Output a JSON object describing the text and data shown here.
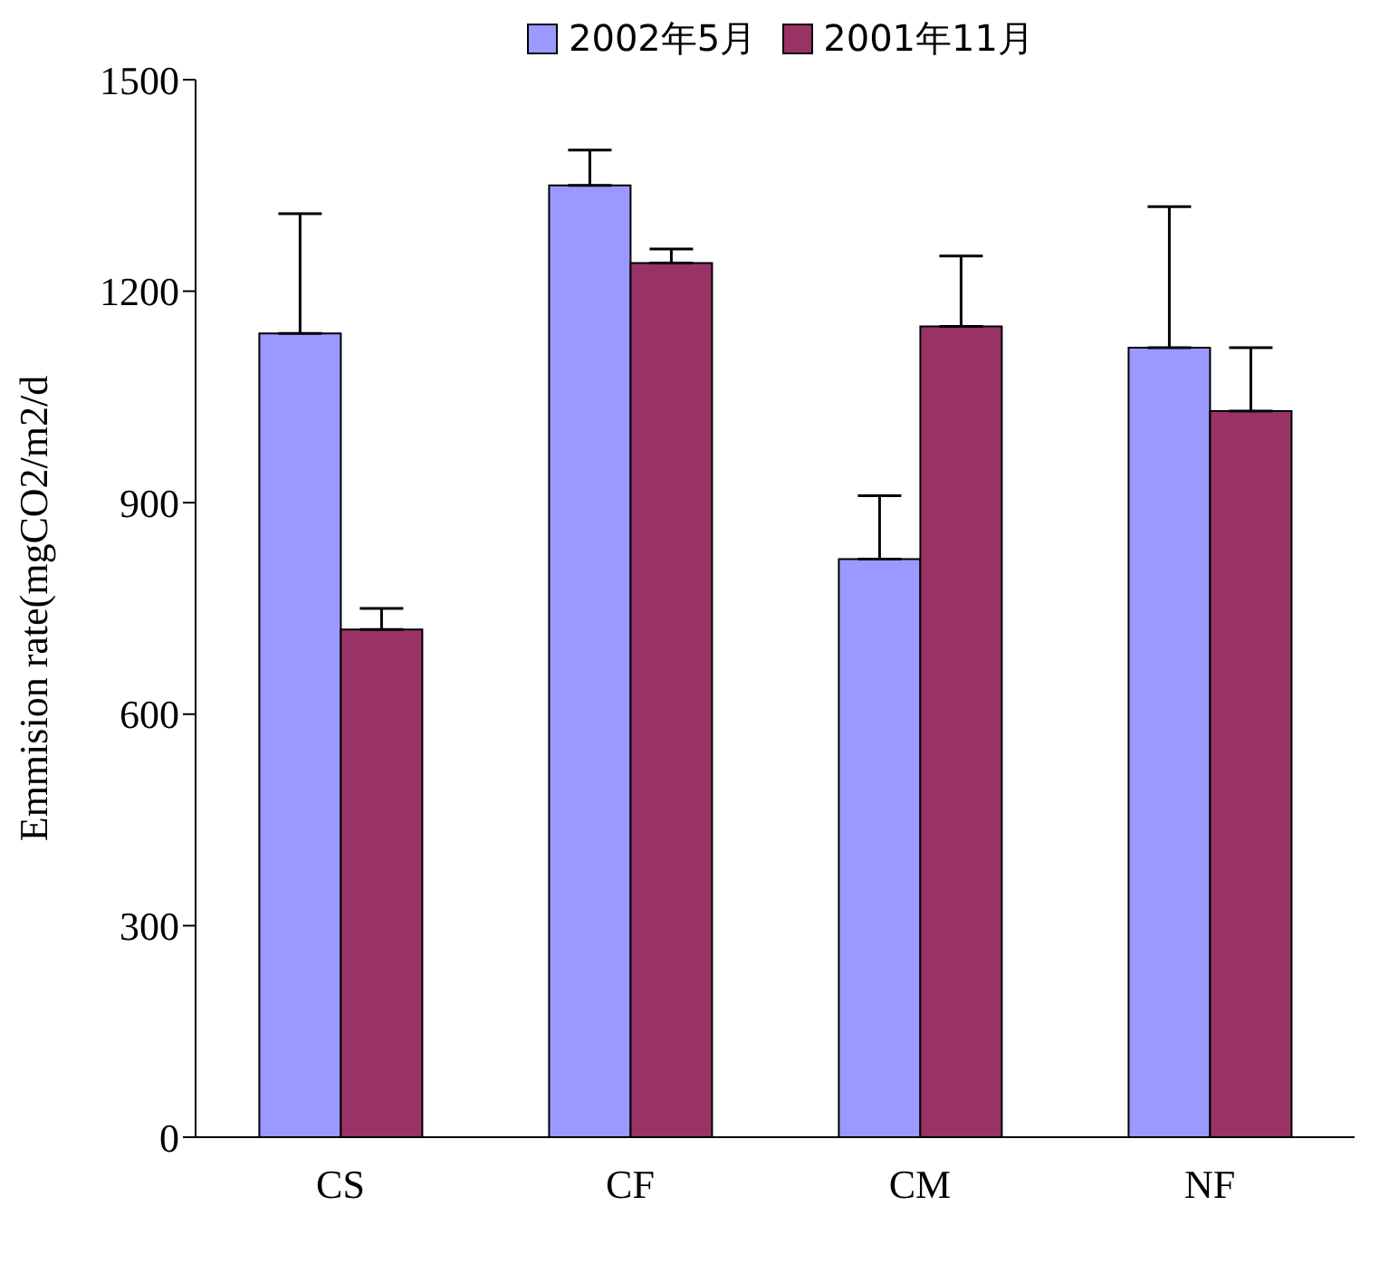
{
  "chart_data": {
    "type": "bar",
    "ylabel": "Emmision rate(mgCO2/m2/d",
    "categories": [
      "CS",
      "CF",
      "CM",
      "NF"
    ],
    "series": [
      {
        "name": "2002年5月",
        "color": "#9999ff",
        "values": [
          1140,
          1350,
          820,
          1120
        ],
        "errors": [
          [
            1140,
            1310
          ],
          [
            1350,
            1400
          ],
          [
            820,
            910
          ],
          [
            1120,
            1320
          ]
        ]
      },
      {
        "name": "2001年11月",
        "color": "#993366",
        "values": [
          720,
          1240,
          1150,
          1030
        ],
        "errors": [
          [
            720,
            750
          ],
          [
            1240,
            1260
          ],
          [
            1150,
            1250
          ],
          [
            1030,
            1120
          ]
        ]
      }
    ],
    "ylim": [
      0,
      1500
    ],
    "yticks": [
      0,
      300,
      600,
      900,
      1200,
      1500
    ],
    "legend": "top"
  }
}
